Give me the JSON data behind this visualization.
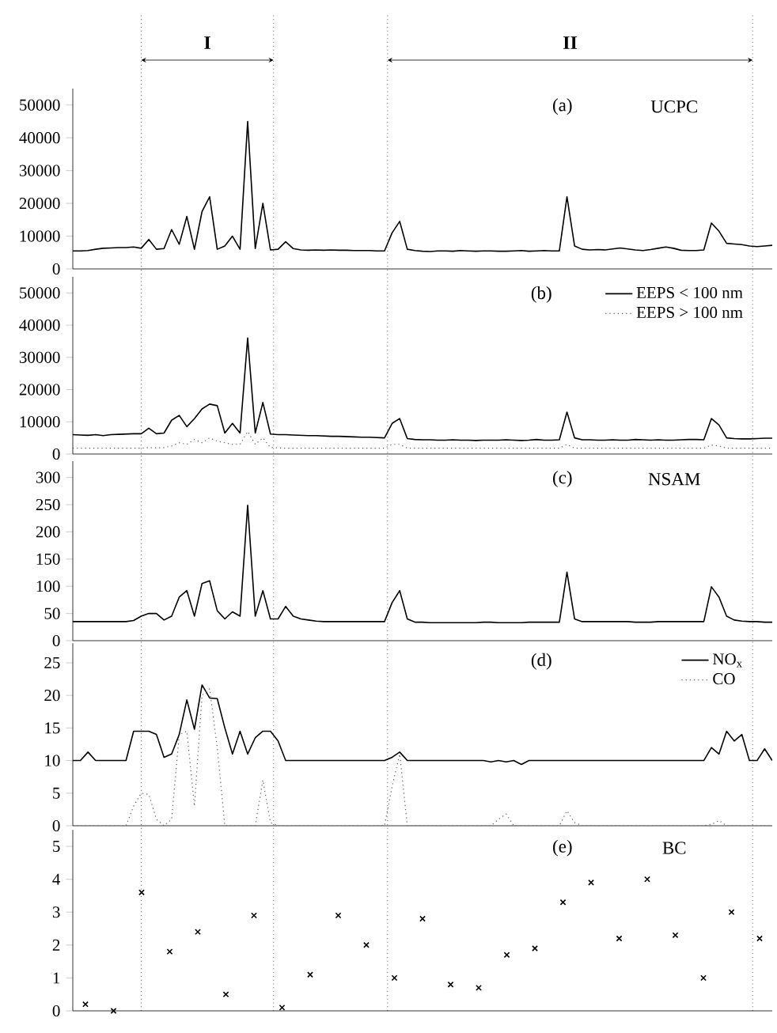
{
  "chart_data": [
    {
      "type": "line",
      "title": "(a)",
      "ylim": [
        0,
        55000
      ],
      "yticks": [
        0,
        10000,
        20000,
        30000,
        40000,
        50000
      ],
      "categories": [
        null,
        null,
        null,
        null,
        null,
        null,
        null,
        null,
        null,
        null,
        null,
        null,
        null,
        null,
        null,
        null,
        null,
        null,
        null,
        null,
        null,
        null,
        null,
        null,
        null,
        null,
        null,
        null,
        null,
        null,
        null,
        null,
        null,
        null,
        null,
        null,
        null,
        null,
        null,
        null,
        null,
        null,
        null,
        null,
        null,
        null,
        null,
        null,
        null,
        null,
        null,
        null,
        null,
        null,
        null,
        null,
        null,
        null,
        null,
        null,
        null,
        null,
        null,
        null,
        null,
        null,
        null,
        null,
        null,
        null,
        null,
        null,
        null,
        null,
        null,
        null,
        null,
        null,
        null,
        null,
        null,
        null,
        null,
        null,
        null,
        null,
        null,
        null,
        null,
        null,
        null,
        null,
        null
      ],
      "series": [
        {
          "name": "UCPC",
          "color": "#000000",
          "line_style": "solid",
          "values": [
            5500,
            5500,
            5600,
            6000,
            6300,
            6400,
            6500,
            6500,
            6700,
            6300,
            9000,
            6000,
            6200,
            12000,
            7500,
            16000,
            6000,
            17500,
            22000,
            6000,
            7000,
            10000,
            6000,
            45000,
            6200,
            20000,
            5800,
            6000,
            8300,
            6200,
            5800,
            5700,
            5800,
            5700,
            5800,
            5700,
            5700,
            5600,
            5600,
            5600,
            5500,
            5500,
            11000,
            14500,
            6000,
            5600,
            5400,
            5300,
            5500,
            5500,
            5400,
            5600,
            5500,
            5400,
            5500,
            5500,
            5400,
            5400,
            5500,
            5600,
            5400,
            5500,
            5600,
            5500,
            5500,
            22000,
            7000,
            6000,
            5800,
            5900,
            5800,
            6100,
            6400,
            6100,
            5800,
            5600,
            5900,
            6300,
            6700,
            6300,
            5700,
            5600,
            5600,
            5800,
            14000,
            11500,
            7800,
            7600,
            7400,
            7000,
            6800,
            7000,
            7200
          ]
        }
      ],
      "annotations": [
        "I",
        "II"
      ]
    },
    {
      "type": "line",
      "title": "(b)",
      "ylim": [
        0,
        55000
      ],
      "yticks": [
        0,
        10000,
        20000,
        30000,
        40000,
        50000
      ],
      "legend": "top right",
      "categories": [
        null,
        null,
        null,
        null,
        null,
        null,
        null,
        null,
        null,
        null,
        null,
        null,
        null,
        null,
        null,
        null,
        null,
        null,
        null,
        null,
        null,
        null,
        null,
        null,
        null,
        null,
        null,
        null,
        null,
        null,
        null,
        null,
        null,
        null,
        null,
        null,
        null,
        null,
        null,
        null,
        null,
        null,
        null,
        null,
        null,
        null,
        null,
        null,
        null,
        null,
        null,
        null,
        null,
        null,
        null,
        null,
        null,
        null,
        null,
        null,
        null,
        null,
        null,
        null,
        null,
        null,
        null,
        null,
        null,
        null,
        null,
        null,
        null,
        null,
        null,
        null,
        null,
        null,
        null,
        null,
        null,
        null,
        null,
        null,
        null,
        null,
        null,
        null,
        null,
        null,
        null,
        null,
        null
      ],
      "series": [
        {
          "name": "EEPS < 100 nm",
          "color": "#000000",
          "line_style": "solid",
          "values": [
            6000,
            5900,
            5800,
            6000,
            5700,
            6000,
            6100,
            6200,
            6300,
            6300,
            8000,
            6300,
            6500,
            10500,
            12000,
            8500,
            11000,
            14000,
            15500,
            15000,
            6500,
            9500,
            6500,
            36000,
            6500,
            16000,
            6200,
            6000,
            6000,
            5900,
            5800,
            5700,
            5700,
            5600,
            5500,
            5500,
            5400,
            5300,
            5200,
            5200,
            5100,
            5000,
            9500,
            11000,
            4800,
            4500,
            4400,
            4400,
            4300,
            4300,
            4400,
            4300,
            4300,
            4200,
            4300,
            4300,
            4300,
            4400,
            4300,
            4200,
            4300,
            4500,
            4300,
            4300,
            4400,
            13000,
            5000,
            4400,
            4400,
            4300,
            4300,
            4400,
            4300,
            4300,
            4500,
            4400,
            4300,
            4400,
            4300,
            4300,
            4400,
            4500,
            4500,
            4400,
            11000,
            9000,
            5000,
            4800,
            4700,
            4700,
            4800,
            4900,
            4900
          ]
        },
        {
          "name": "EEPS > 100 nm",
          "color": "#555555",
          "line_style": "dotted",
          "values": [
            1800,
            1800,
            1800,
            1800,
            1800,
            1800,
            1800,
            1800,
            1800,
            1800,
            2000,
            1900,
            2000,
            2500,
            3500,
            3000,
            4500,
            3500,
            5000,
            4000,
            3500,
            3000,
            3000,
            7000,
            3000,
            5000,
            2000,
            1900,
            1800,
            1800,
            1800,
            1800,
            1800,
            1800,
            1800,
            1800,
            1800,
            1800,
            1800,
            1800,
            1800,
            1800,
            3000,
            3000,
            1800,
            1800,
            1800,
            1800,
            1800,
            1800,
            1800,
            1800,
            1800,
            1800,
            1800,
            1800,
            1800,
            1800,
            1800,
            1800,
            1800,
            1800,
            1800,
            1800,
            1800,
            3000,
            1800,
            1800,
            1800,
            1800,
            1800,
            1800,
            1800,
            1800,
            1800,
            1800,
            1800,
            1800,
            1800,
            1800,
            1800,
            1800,
            1800,
            1800,
            2800,
            2500,
            1800,
            1800,
            1800,
            1800,
            1800,
            1800,
            1800
          ]
        }
      ]
    },
    {
      "type": "line",
      "title": "(c)",
      "ylim": [
        0,
        330
      ],
      "yticks": [
        0,
        50,
        100,
        150,
        200,
        250,
        300
      ],
      "categories": [
        null,
        null,
        null,
        null,
        null,
        null,
        null,
        null,
        null,
        null,
        null,
        null,
        null,
        null,
        null,
        null,
        null,
        null,
        null,
        null,
        null,
        null,
        null,
        null,
        null,
        null,
        null,
        null,
        null,
        null,
        null,
        null,
        null,
        null,
        null,
        null,
        null,
        null,
        null,
        null,
        null,
        null,
        null,
        null,
        null,
        null,
        null,
        null,
        null,
        null,
        null,
        null,
        null,
        null,
        null,
        null,
        null,
        null,
        null,
        null,
        null,
        null,
        null,
        null,
        null,
        null,
        null,
        null,
        null,
        null,
        null,
        null,
        null,
        null,
        null,
        null,
        null,
        null,
        null,
        null,
        null,
        null,
        null,
        null,
        null,
        null,
        null,
        null,
        null,
        null,
        null,
        null,
        null
      ],
      "series": [
        {
          "name": "NSAM",
          "color": "#000000",
          "line_style": "solid",
          "values": [
            35,
            35,
            35,
            35,
            35,
            35,
            35,
            35,
            37,
            45,
            50,
            50,
            38,
            45,
            80,
            92,
            45,
            105,
            110,
            55,
            40,
            53,
            45,
            249,
            45,
            92,
            40,
            40,
            63,
            45,
            40,
            38,
            36,
            35,
            35,
            35,
            35,
            35,
            35,
            35,
            35,
            35,
            70,
            92,
            40,
            34,
            34,
            33,
            33,
            33,
            33,
            33,
            33,
            33,
            34,
            34,
            33,
            33,
            33,
            33,
            34,
            34,
            34,
            34,
            34,
            126,
            40,
            35,
            35,
            35,
            35,
            35,
            35,
            35,
            34,
            34,
            34,
            35,
            35,
            35,
            35,
            35,
            35,
            35,
            99,
            80,
            45,
            38,
            36,
            35,
            35,
            34,
            34
          ]
        }
      ]
    },
    {
      "type": "line",
      "title": "(d)",
      "ylim": [
        0,
        28
      ],
      "yticks": [
        0,
        5,
        10,
        15,
        20,
        25
      ],
      "legend": "top right",
      "categories": [
        null,
        null,
        null,
        null,
        null,
        null,
        null,
        null,
        null,
        null,
        null,
        null,
        null,
        null,
        null,
        null,
        null,
        null,
        null,
        null,
        null,
        null,
        null,
        null,
        null,
        null,
        null,
        null,
        null,
        null,
        null,
        null,
        null,
        null,
        null,
        null,
        null,
        null,
        null,
        null,
        null,
        null,
        null,
        null,
        null,
        null,
        null,
        null,
        null,
        null,
        null,
        null,
        null,
        null,
        null,
        null,
        null,
        null,
        null,
        null,
        null,
        null,
        null,
        null,
        null,
        null,
        null,
        null,
        null,
        null,
        null,
        null,
        null,
        null,
        null,
        null,
        null,
        null,
        null,
        null,
        null,
        null,
        null,
        null,
        null,
        null,
        null,
        null,
        null,
        null,
        null,
        null,
        null
      ],
      "series": [
        {
          "name": "NO$_{x}$",
          "color": "#000000",
          "line_style": "solid",
          "values": [
            10,
            10,
            11.3,
            10,
            10,
            10,
            10,
            10,
            14.5,
            14.5,
            14.5,
            14,
            10.5,
            11,
            14,
            19.3,
            14.8,
            21.6,
            19.6,
            19.5,
            15,
            11,
            14.5,
            11,
            13.5,
            14.5,
            14.5,
            13,
            10,
            10,
            10,
            10,
            10,
            10,
            10,
            10,
            10,
            10,
            10,
            10,
            10,
            10,
            10.5,
            11.3,
            10,
            10,
            10,
            10,
            10,
            10,
            10,
            10,
            10,
            10,
            10,
            9.8,
            10,
            9.8,
            10,
            9.4,
            10,
            10,
            10,
            10,
            10,
            10,
            10,
            10,
            10,
            10,
            10,
            10,
            10,
            10,
            10,
            10,
            10,
            10,
            10,
            10,
            10,
            10,
            10,
            10,
            12,
            11,
            14.5,
            13,
            14,
            10,
            10,
            11.8,
            10
          ]
        },
        {
          "name": "CO",
          "color": "#555555",
          "line_style": "dotted",
          "values": [
            0,
            0,
            0,
            0,
            0,
            0,
            0,
            0,
            3,
            5,
            4.8,
            1,
            0,
            1,
            14,
            14.5,
            3,
            20,
            21,
            12,
            0,
            0,
            0,
            0,
            0,
            7,
            0.5,
            0,
            0,
            0,
            0,
            0,
            0,
            0,
            0,
            0,
            0,
            0,
            0,
            0,
            0,
            0,
            6,
            11,
            0,
            0,
            0,
            0,
            0,
            0,
            0,
            0,
            0,
            0,
            0,
            0,
            1,
            1.8,
            0,
            0,
            0,
            0,
            0,
            0,
            0,
            2.3,
            0.5,
            0,
            0,
            0,
            0,
            0,
            0,
            0,
            0,
            0,
            0,
            0,
            0,
            0,
            0,
            0,
            0,
            0,
            0.2,
            0.8,
            0,
            0,
            0,
            0,
            0,
            0,
            0
          ]
        }
      ]
    },
    {
      "type": "scatter",
      "title": "(e)",
      "ylim": [
        0,
        5.5
      ],
      "yticks": [
        0,
        1,
        2,
        3,
        4,
        5
      ],
      "marker": "cross",
      "categories": [
        null,
        null,
        null,
        null,
        null,
        null,
        null,
        null,
        null,
        null,
        null,
        null,
        null,
        null,
        null,
        null,
        null,
        null,
        null,
        null,
        null,
        null,
        null,
        null,
        null
      ],
      "series": [
        {
          "name": "BC",
          "color": "#000000",
          "values": [
            0.2,
            0,
            3.6,
            1.8,
            2.4,
            0.5,
            2.9,
            0.1,
            1.1,
            2.9,
            2.0,
            1.0,
            2.8,
            0.8,
            0.7,
            1.7,
            1.9,
            3.3,
            3.9,
            2.2,
            4.0,
            2.3,
            1.0,
            3.0,
            2.2
          ]
        }
      ]
    }
  ]
}
